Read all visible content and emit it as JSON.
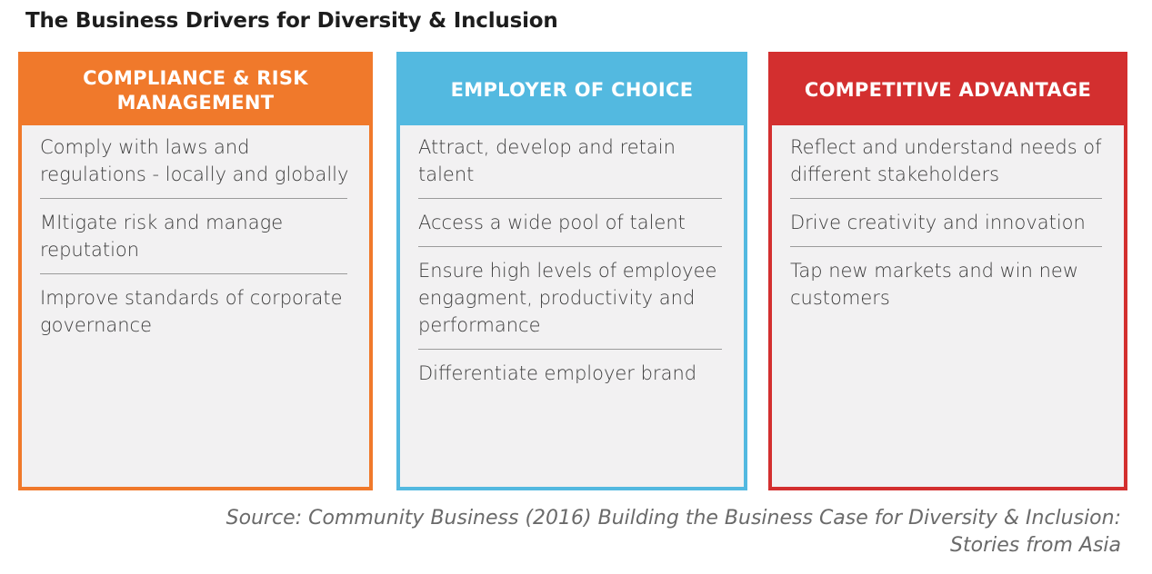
{
  "title": "The Business Drivers for Diversity & Inclusion",
  "colors": {
    "orange": "#F0792B",
    "blue": "#53B9E0",
    "red": "#D32F2F",
    "body_background": "#F2F1F2",
    "divider": "#9B9B9B",
    "body_text": "#3D3D3D",
    "header_text": "#FFFFFF"
  },
  "columns": [
    {
      "header": "COMPLIANCE & RISK MANAGEMENT",
      "color": "#F0792B",
      "items": [
        "Comply with laws and regulations - locally and globally",
        "MItigate risk and manage reputation",
        "Improve standards of corporate governance"
      ]
    },
    {
      "header": "EMPLOYER OF CHOICE",
      "color": "#53B9E0",
      "items": [
        "Attract, develop and retain talent",
        "Access a wide pool of talent",
        "Ensure high levels of employee engagment, productivity and performance",
        "Differentiate employer brand"
      ]
    },
    {
      "header": "COMPETITIVE ADVANTAGE",
      "color": "#D32F2F",
      "items": [
        "Reflect and understand needs of different stakeholders",
        "Drive creativity and innovation",
        "Tap new markets and win new customers"
      ]
    }
  ],
  "source": {
    "line1": "Source: Community Business (2016) Building the Business Case for Diversity & Inclusion:",
    "line2": "Stories from Asia"
  }
}
